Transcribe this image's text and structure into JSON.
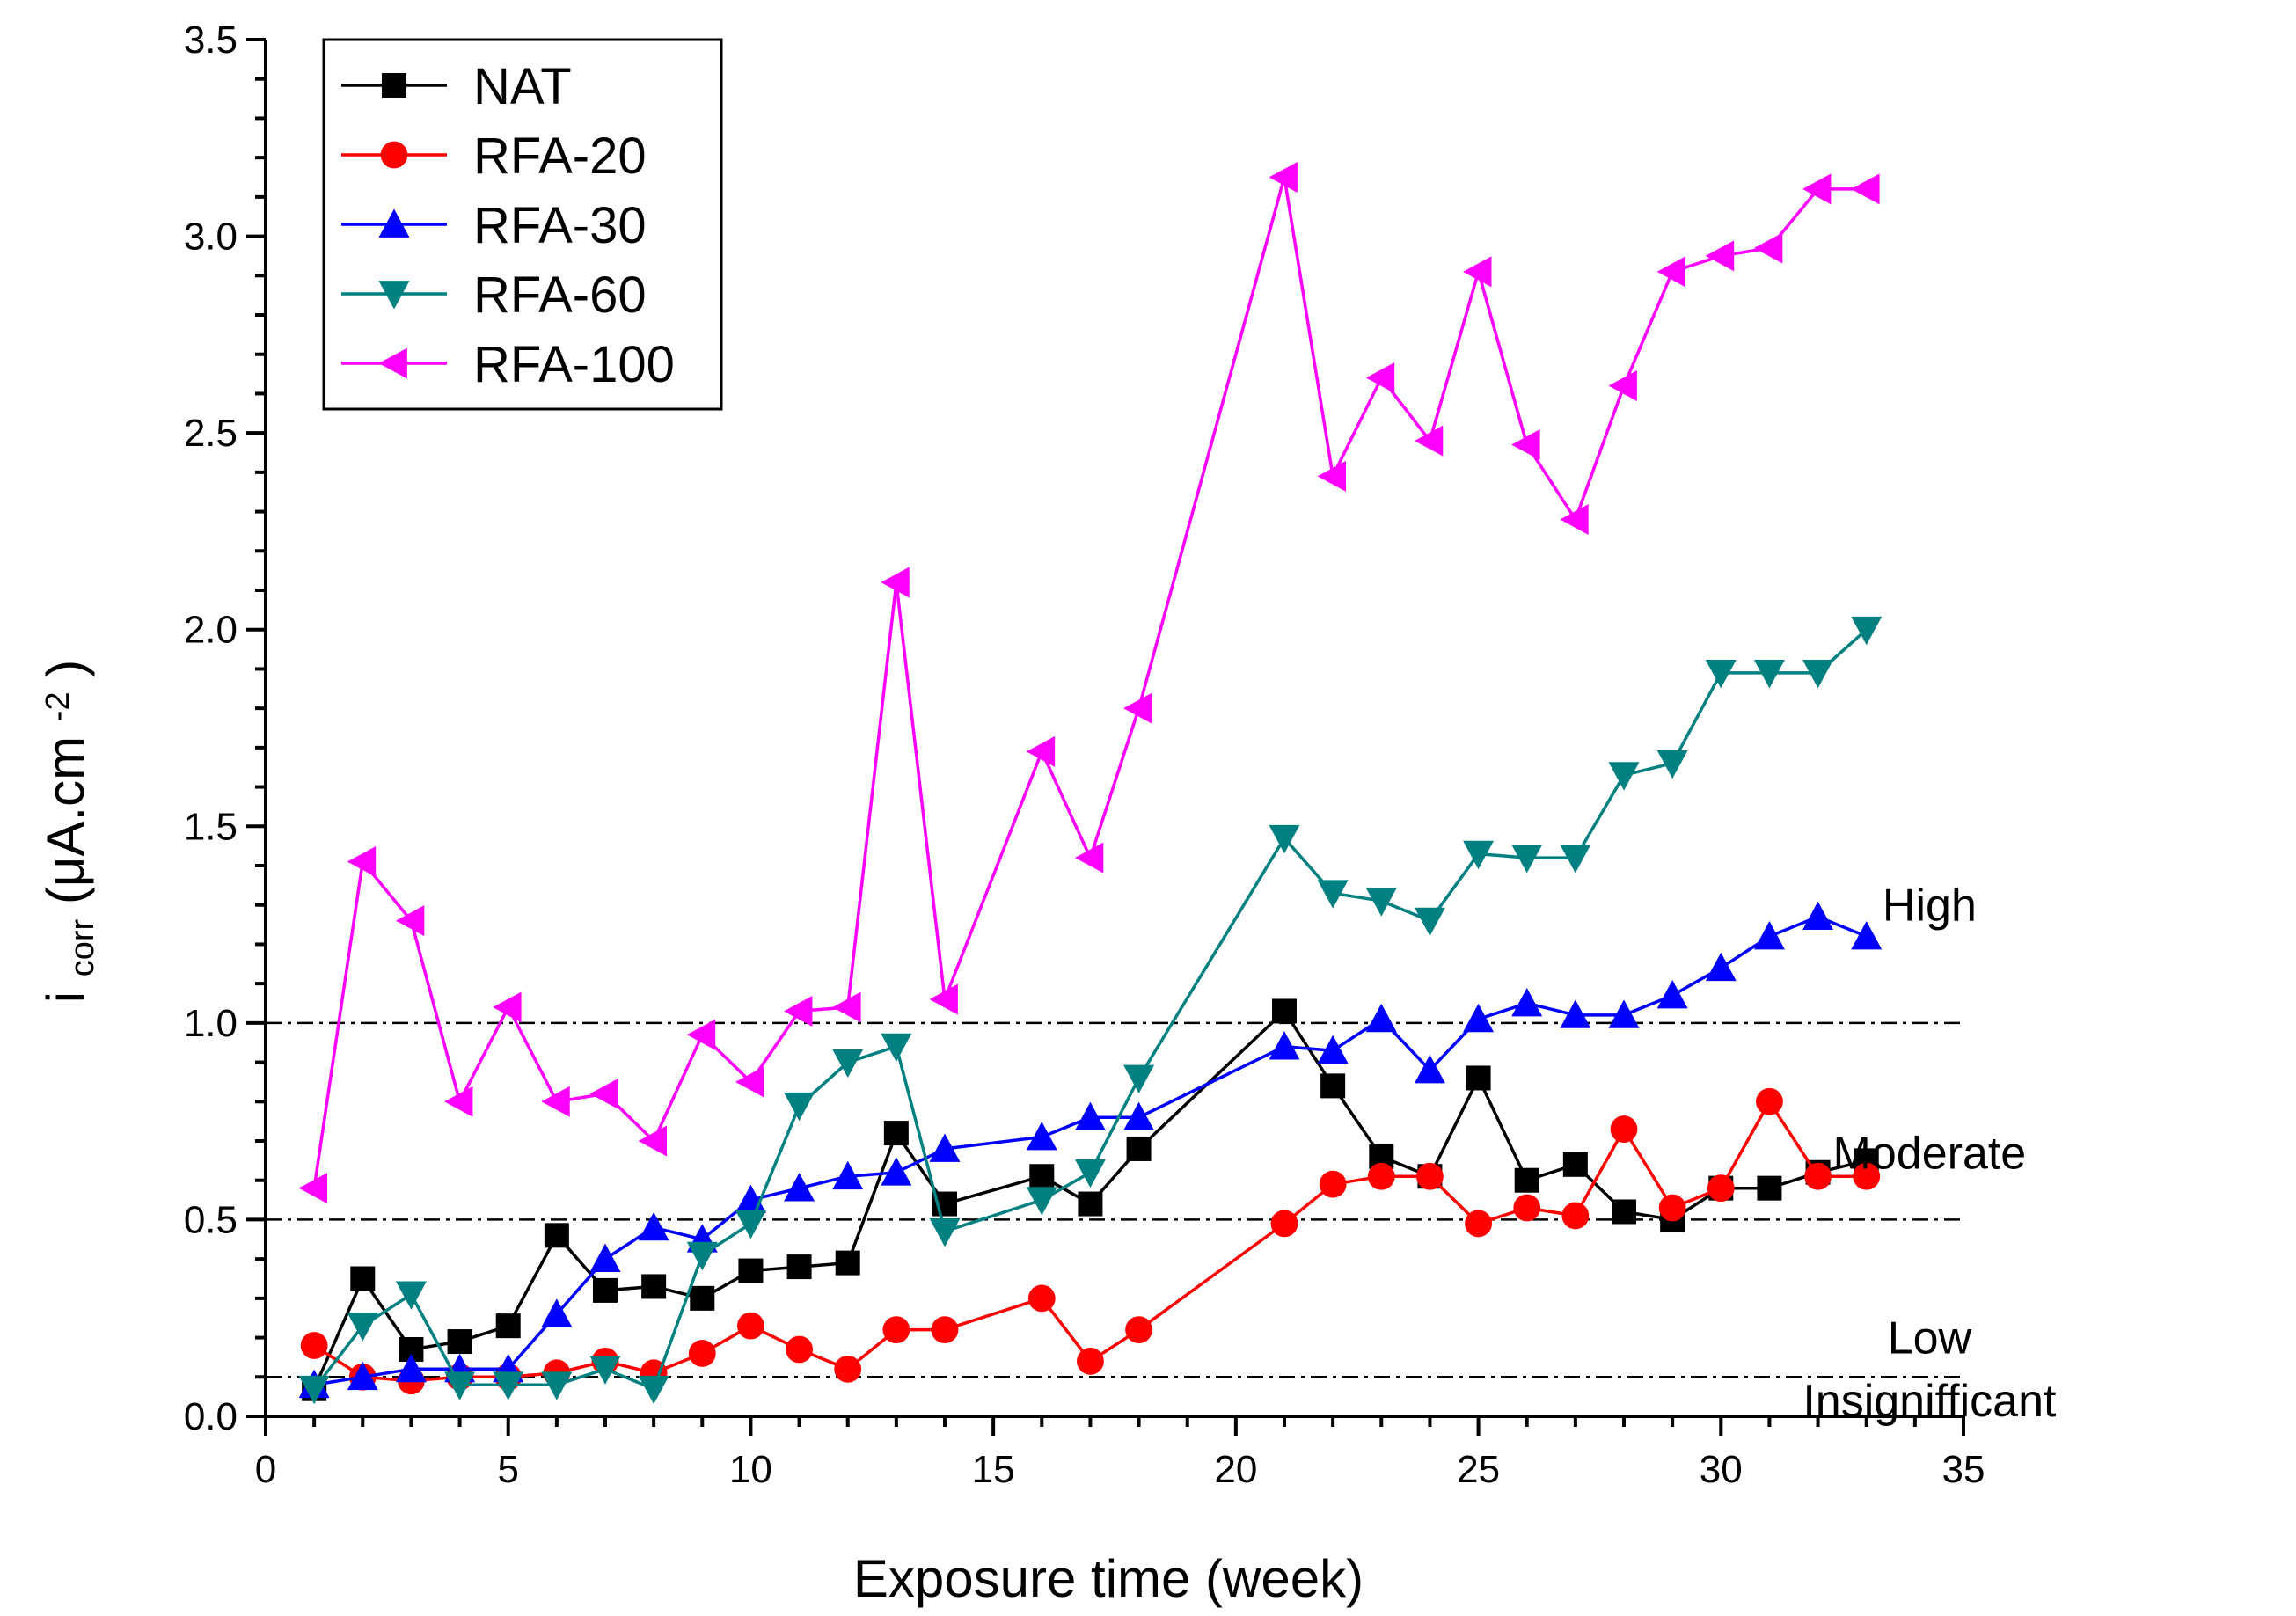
{
  "chart_data": {
    "type": "line",
    "xlabel": "Exposure time (week)",
    "ylabel": {
      "main": "i",
      "sub": "corr",
      "unit_open": " (μA.cm",
      "unit_sup": "-2",
      "unit_close": ")"
    },
    "xlim": [
      0,
      35
    ],
    "ylim": [
      0,
      3.5
    ],
    "xticks": [
      "0",
      "5",
      "10",
      "15",
      "20",
      "25",
      "30",
      "35"
    ],
    "yticks": [
      "0.0",
      "0.5",
      "1.0",
      "1.5",
      "2.0",
      "2.5",
      "3.0",
      "3.5"
    ],
    "grid": false,
    "legend_position": "top-left",
    "threshold_lines": [
      {
        "y": 0.1,
        "label": "Insignifficant"
      },
      {
        "y": 0.5,
        "label": "Low"
      },
      {
        "y": 1.0,
        "label": "Moderate"
      },
      {
        "y": 1.0,
        "label": "High"
      }
    ],
    "zone_labels": [
      {
        "text": "High",
        "x": 34.3,
        "y": 1.3
      },
      {
        "text": "Moderate",
        "x": 34.3,
        "y": 0.67
      },
      {
        "text": "Low",
        "x": 34.3,
        "y": 0.2
      },
      {
        "text": "Insignifficant",
        "x": 34.3,
        "y": 0.04
      }
    ],
    "series": [
      {
        "name": "NAT",
        "color": "#000000",
        "marker": "square",
        "x": [
          1,
          2,
          3,
          4,
          5,
          6,
          7,
          8,
          9,
          10,
          11,
          12,
          13,
          14,
          16,
          17,
          18,
          21,
          22,
          23,
          24,
          25,
          26,
          27,
          28,
          29,
          30,
          31,
          32,
          33
        ],
        "y": [
          0.07,
          0.35,
          0.17,
          0.19,
          0.23,
          0.46,
          0.32,
          0.33,
          0.3,
          0.37,
          0.38,
          0.39,
          0.72,
          0.54,
          0.61,
          0.54,
          0.68,
          1.03,
          0.84,
          0.66,
          0.61,
          0.86,
          0.6,
          0.64,
          0.52,
          0.5,
          0.58,
          0.58,
          0.62,
          0.65
        ]
      },
      {
        "name": "RFA-20",
        "color": "#ff0000",
        "marker": "circle",
        "x": [
          1,
          2,
          3,
          4,
          5,
          6,
          7,
          8,
          9,
          10,
          11,
          12,
          13,
          14,
          16,
          17,
          18,
          21,
          22,
          23,
          24,
          25,
          26,
          27,
          28,
          29,
          30,
          31,
          32,
          33
        ],
        "y": [
          0.18,
          0.1,
          0.09,
          0.1,
          0.1,
          0.11,
          0.14,
          0.11,
          0.16,
          0.23,
          0.17,
          0.12,
          0.22,
          0.22,
          0.3,
          0.14,
          0.22,
          0.49,
          0.59,
          0.61,
          0.61,
          0.49,
          0.53,
          0.51,
          0.73,
          0.53,
          0.58,
          0.8,
          0.61,
          0.61
        ]
      },
      {
        "name": "RFA-30",
        "color": "#0000ff",
        "marker": "triangle-up",
        "x": [
          1,
          2,
          3,
          4,
          5,
          6,
          7,
          8,
          9,
          10,
          11,
          12,
          13,
          14,
          16,
          17,
          18,
          21,
          22,
          23,
          24,
          25,
          26,
          27,
          28,
          29,
          30,
          31,
          32,
          33
        ],
        "y": [
          0.08,
          0.1,
          0.12,
          0.12,
          0.12,
          0.26,
          0.4,
          0.48,
          0.45,
          0.55,
          0.58,
          0.61,
          0.62,
          0.68,
          0.71,
          0.76,
          0.76,
          0.94,
          0.93,
          1.01,
          0.88,
          1.01,
          1.05,
          1.02,
          1.02,
          1.07,
          1.14,
          1.22,
          1.27,
          1.22
        ]
      },
      {
        "name": "RFA-60",
        "color": "#008080",
        "marker": "triangle-down",
        "x": [
          1,
          2,
          3,
          4,
          5,
          6,
          7,
          8,
          9,
          10,
          11,
          12,
          13,
          14,
          16,
          17,
          18,
          21,
          22,
          23,
          24,
          25,
          26,
          27,
          28,
          29,
          30,
          31,
          32,
          33
        ],
        "y": [
          0.07,
          0.23,
          0.31,
          0.08,
          0.08,
          0.08,
          0.12,
          0.07,
          0.41,
          0.49,
          0.79,
          0.9,
          0.94,
          0.47,
          0.55,
          0.62,
          0.86,
          1.47,
          1.33,
          1.31,
          1.26,
          1.43,
          1.42,
          1.42,
          1.63,
          1.66,
          1.89,
          1.89,
          1.89,
          2.0
        ]
      },
      {
        "name": "RFA-100",
        "color": "#ff00ff",
        "marker": "triangle-left",
        "x": [
          1,
          2,
          3,
          4,
          5,
          6,
          7,
          8,
          9,
          10,
          11,
          12,
          13,
          14,
          16,
          17,
          18,
          21,
          22,
          23,
          24,
          25,
          26,
          27,
          28,
          29,
          30,
          31,
          32,
          33
        ],
        "y": [
          0.58,
          1.41,
          1.26,
          0.8,
          1.04,
          0.8,
          0.82,
          0.7,
          0.97,
          0.85,
          1.03,
          1.04,
          2.12,
          1.06,
          1.69,
          1.42,
          1.8,
          3.15,
          2.39,
          2.64,
          2.48,
          2.91,
          2.47,
          2.28,
          2.62,
          2.91,
          2.95,
          2.97,
          3.12,
          3.12
        ]
      }
    ]
  }
}
